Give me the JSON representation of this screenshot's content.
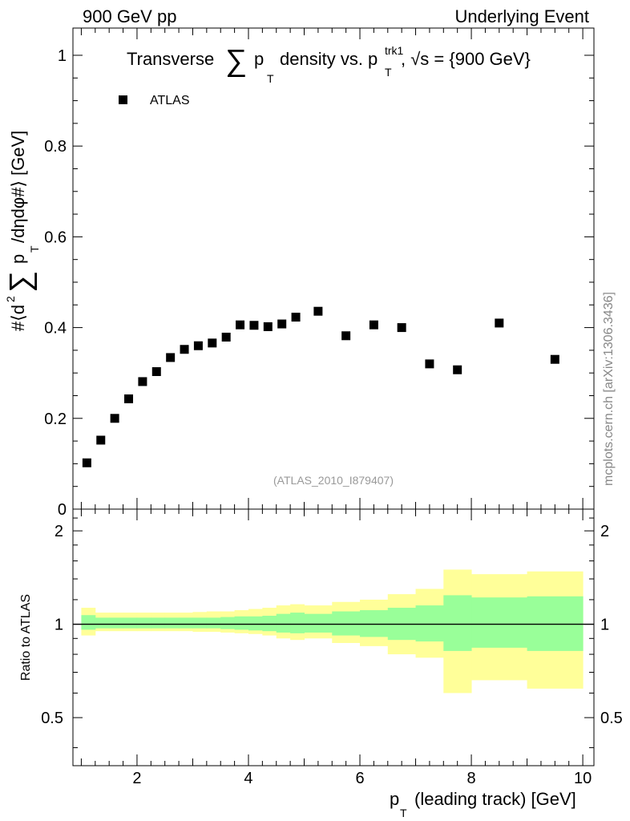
{
  "header": {
    "left": "900 GeV pp",
    "right": "Underlying Event"
  },
  "watermark": "mcplots.cern.ch [arXiv:1306.3436]",
  "analysis_id": "(ATLAS_2010_I879407)",
  "chart_data": [
    {
      "type": "scatter",
      "panel": "main",
      "title": {
        "prefix": "Transverse",
        "sum_symbol": "∑",
        "p": "p",
        "sub_T": "T",
        "middle": "density vs. p",
        "sup_trk1": "trk1",
        "suffix": ", √s = {900 GeV}"
      },
      "ylabel": {
        "prefix": "#⟨d",
        "sup2": "2",
        "sum_symbol": "∑",
        "p": "p",
        "sub_T": "T",
        "suffix": "/dηdφ#⟩ [GeV]"
      },
      "xlim": [
        0.85,
        10.2
      ],
      "ylim": [
        0,
        1.06
      ],
      "yticks": [
        "0",
        "0.2",
        "0.4",
        "0.6",
        "0.8",
        "1"
      ],
      "legend": {
        "position": "top-left",
        "label": "ATLAS",
        "color": "#000000"
      },
      "series": [
        {
          "name": "ATLAS",
          "x": [
            1.1,
            1.35,
            1.6,
            1.85,
            2.1,
            2.35,
            2.6,
            2.85,
            3.1,
            3.35,
            3.6,
            3.85,
            4.1,
            4.35,
            4.6,
            4.85,
            5.25,
            5.75,
            6.25,
            6.75,
            7.25,
            7.75,
            8.5,
            9.5
          ],
          "y": [
            0.102,
            0.152,
            0.2,
            0.243,
            0.281,
            0.303,
            0.334,
            0.352,
            0.36,
            0.366,
            0.379,
            0.406,
            0.405,
            0.402,
            0.408,
            0.423,
            0.436,
            0.382,
            0.406,
            0.4,
            0.32,
            0.307,
            0.41,
            0.33
          ]
        }
      ]
    },
    {
      "type": "area",
      "panel": "ratio",
      "ylabel": "Ratio to ATLAS",
      "xlabel": {
        "p": "p",
        "sub_T": "T",
        "suffix": "(leading track) [GeV]"
      },
      "xlim": [
        0.85,
        10.2
      ],
      "ylim": [
        0.35,
        2.35
      ],
      "xticks": [
        "2",
        "4",
        "6",
        "8",
        "10"
      ],
      "yticks": [
        "0.5",
        "1",
        "2"
      ],
      "reference": 1,
      "bands": {
        "edges": [
          1.0,
          1.25,
          1.5,
          1.75,
          2.0,
          2.25,
          2.5,
          2.75,
          3.0,
          3.25,
          3.5,
          3.75,
          4.0,
          4.25,
          4.5,
          4.75,
          5.0,
          5.5,
          6.0,
          6.5,
          7.0,
          7.5,
          8.0,
          9.0,
          10.0
        ],
        "yellow": {
          "color": "#ffff99",
          "lo": [
            0.92,
            0.95,
            0.95,
            0.95,
            0.95,
            0.95,
            0.95,
            0.95,
            0.945,
            0.945,
            0.94,
            0.935,
            0.93,
            0.92,
            0.9,
            0.89,
            0.9,
            0.87,
            0.85,
            0.8,
            0.78,
            0.6,
            0.66,
            0.62
          ],
          "hi": [
            1.13,
            1.09,
            1.09,
            1.09,
            1.09,
            1.09,
            1.09,
            1.09,
            1.095,
            1.1,
            1.1,
            1.11,
            1.12,
            1.13,
            1.15,
            1.16,
            1.15,
            1.18,
            1.2,
            1.25,
            1.3,
            1.5,
            1.45,
            1.48
          ]
        },
        "green": {
          "color": "#99ff99",
          "lo": [
            0.96,
            0.97,
            0.97,
            0.97,
            0.97,
            0.97,
            0.97,
            0.97,
            0.97,
            0.97,
            0.965,
            0.96,
            0.955,
            0.95,
            0.94,
            0.935,
            0.94,
            0.92,
            0.91,
            0.89,
            0.88,
            0.82,
            0.84,
            0.82
          ],
          "hi": [
            1.07,
            1.05,
            1.05,
            1.05,
            1.05,
            1.05,
            1.05,
            1.05,
            1.05,
            1.05,
            1.055,
            1.06,
            1.06,
            1.065,
            1.08,
            1.09,
            1.08,
            1.1,
            1.11,
            1.13,
            1.15,
            1.24,
            1.22,
            1.23
          ]
        }
      }
    }
  ]
}
